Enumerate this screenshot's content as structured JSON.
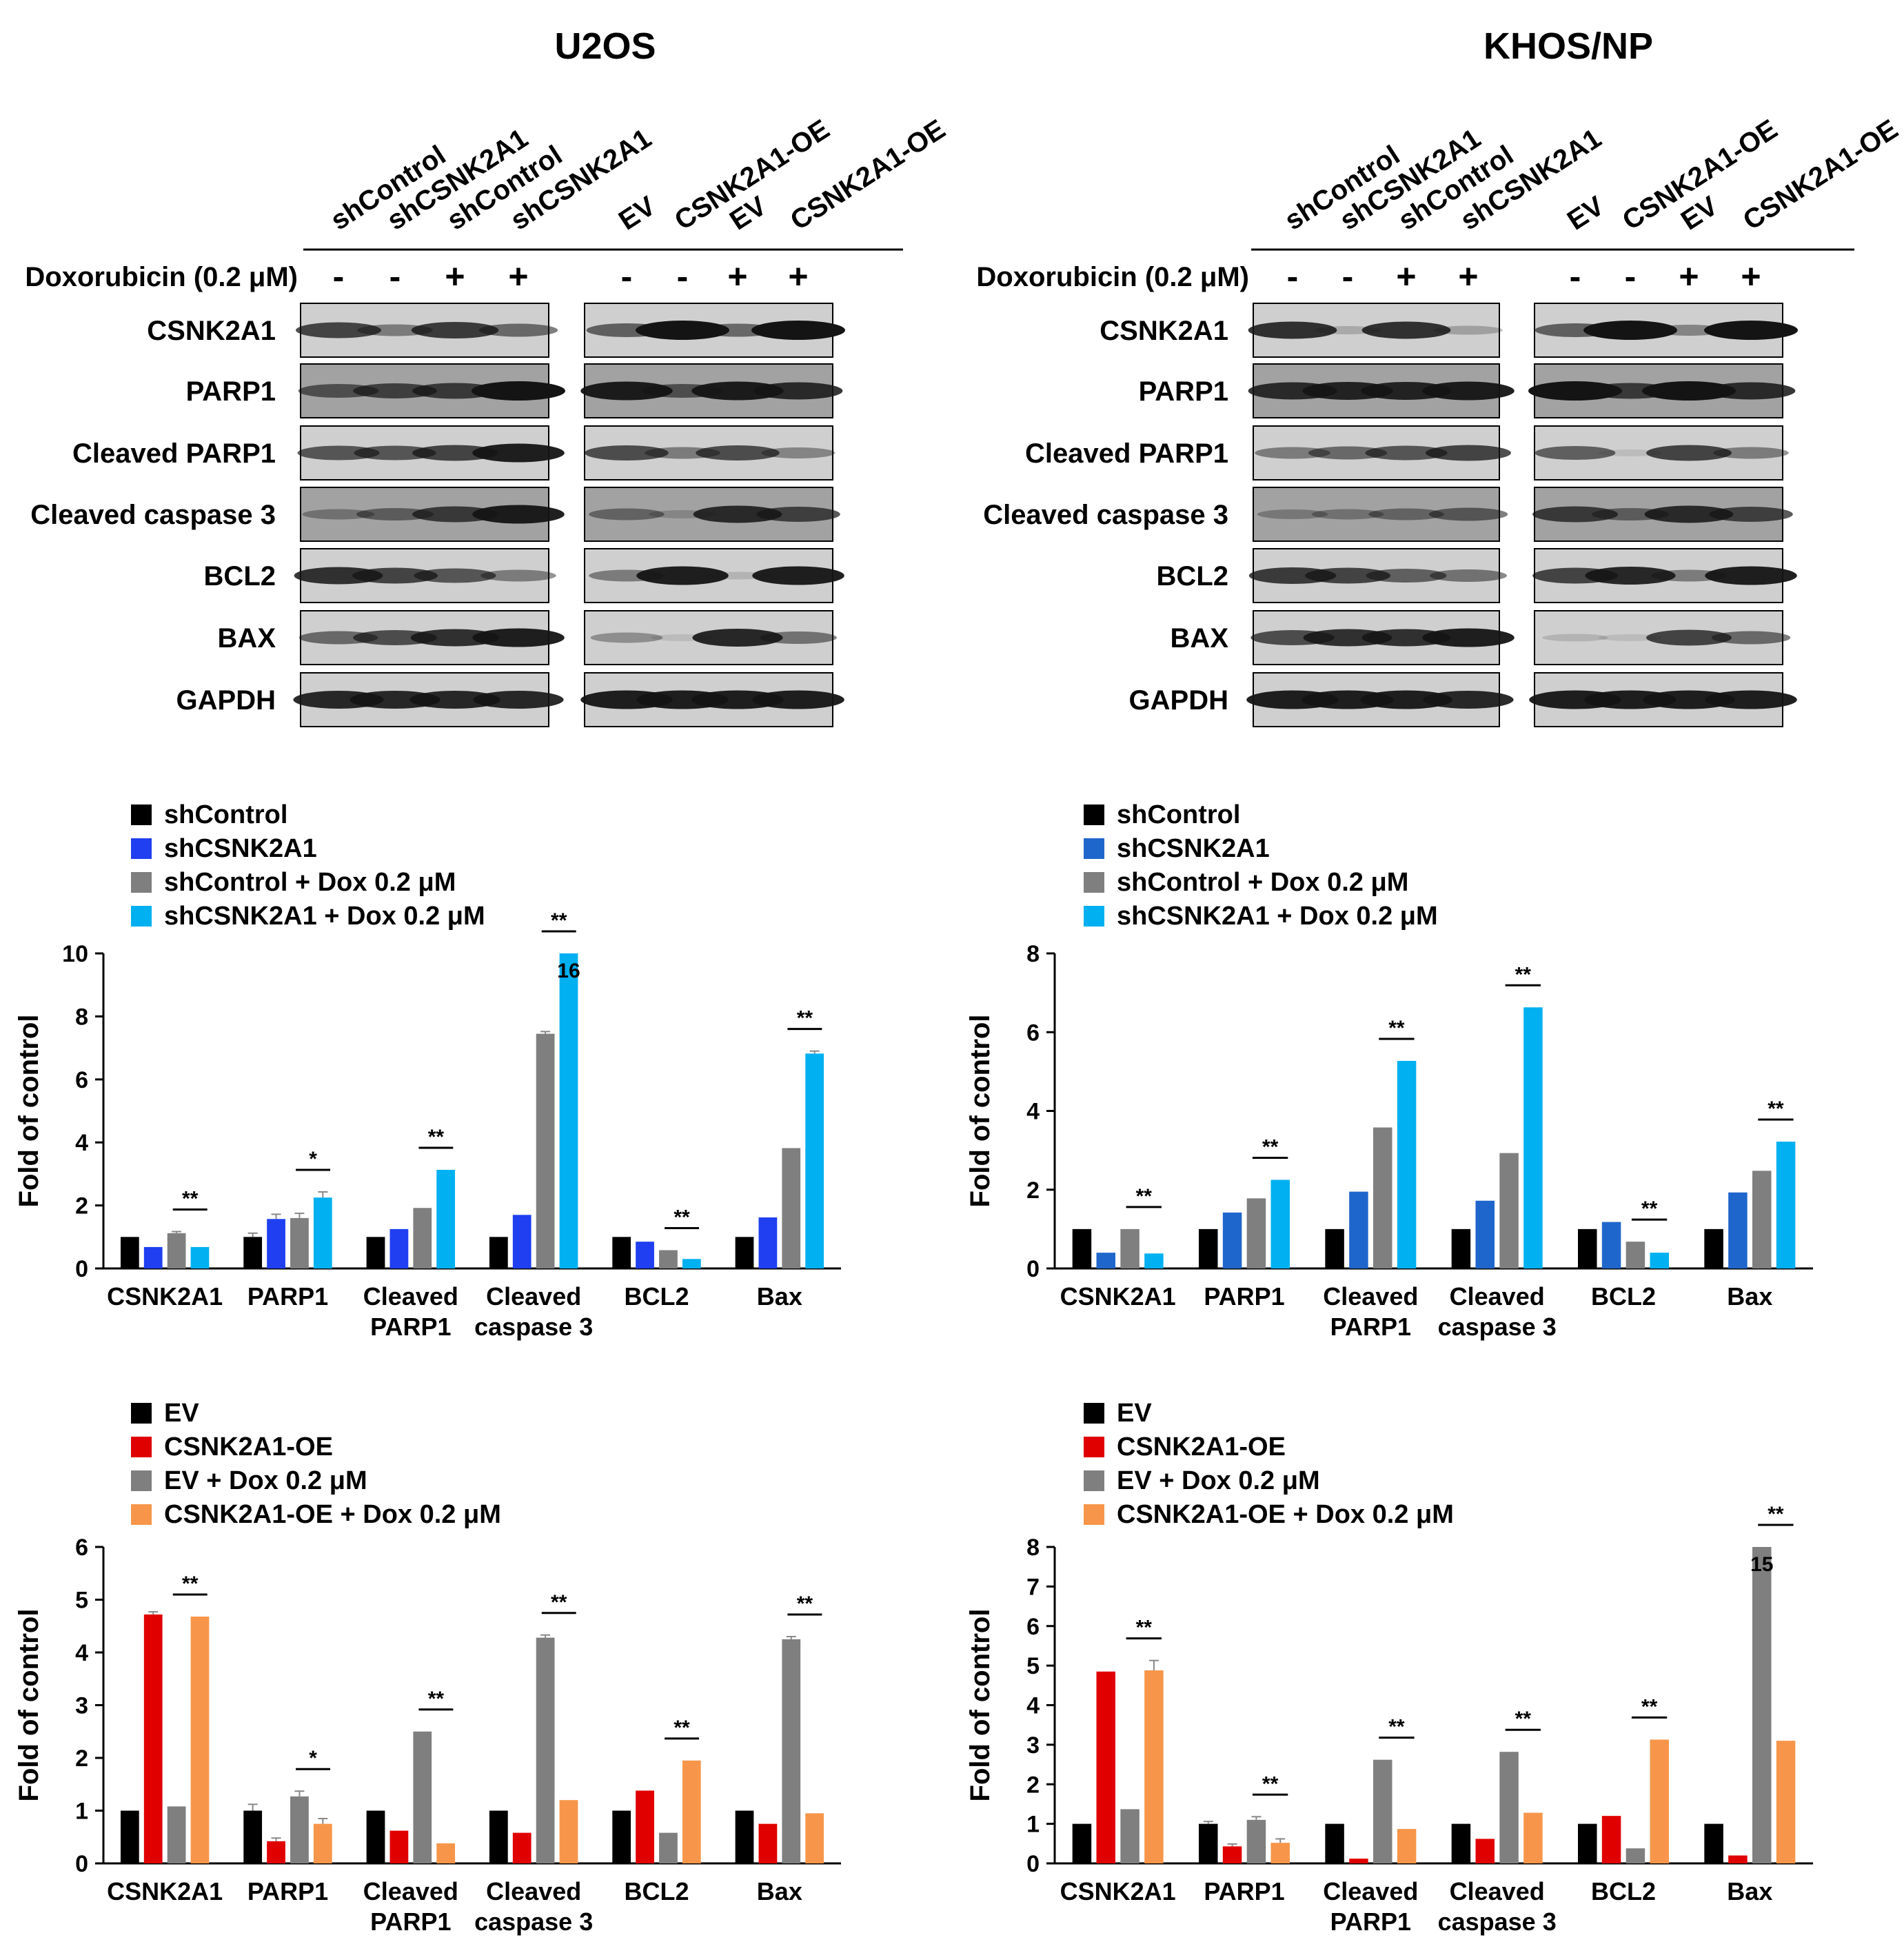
{
  "colors": {
    "axis": "#000000",
    "blot_background": "#e2e2e2",
    "band": "#141414",
    "sh_series": [
      "#000000",
      "#1f3ff0",
      "#7f7f7f",
      "#00b0f0"
    ],
    "sh_series_khos": [
      "#000000",
      "#1f66cc",
      "#7f7f7f",
      "#00b0f0"
    ],
    "oe_series": [
      "#000000",
      "#e00000",
      "#7f7f7f",
      "#f7964a"
    ]
  },
  "panels": [
    {
      "title": "U2OS",
      "lanes_left": [
        "shControl",
        "shCSNK2A1",
        "shControl",
        "shCSNK2A1"
      ],
      "lanes_right": [
        "EV",
        "CSNK2A1-OE",
        "EV",
        "CSNK2A1-OE"
      ],
      "treatment_label": "Doxorubicin (0.2 μM)",
      "treatment_marks": [
        "-",
        "-",
        "+",
        "+",
        "-",
        "-",
        "+",
        "+"
      ],
      "proteins": [
        "CSNK2A1",
        "PARP1",
        "Cleaved PARP1",
        "Cleaved caspase 3",
        "BCL2",
        "BAX",
        "GAPDH"
      ],
      "band_intensity_left": [
        [
          0.75,
          0.45,
          0.8,
          0.55
        ],
        [
          0.6,
          0.7,
          0.75,
          1.0
        ],
        [
          0.65,
          0.65,
          0.75,
          0.95
        ],
        [
          0.35,
          0.5,
          0.75,
          0.95
        ],
        [
          0.85,
          0.75,
          0.65,
          0.45
        ],
        [
          0.55,
          0.7,
          0.85,
          0.95
        ],
        [
          0.9,
          0.9,
          0.9,
          0.9
        ]
      ],
      "band_intensity_right": [
        [
          0.6,
          1.0,
          0.55,
          1.0
        ],
        [
          0.95,
          0.6,
          0.95,
          0.85
        ],
        [
          0.7,
          0.45,
          0.7,
          0.4
        ],
        [
          0.45,
          0.2,
          0.85,
          0.7
        ],
        [
          0.45,
          0.95,
          0.15,
          0.95
        ],
        [
          0.35,
          0.1,
          0.9,
          0.5
        ],
        [
          0.95,
          0.95,
          0.95,
          0.95
        ]
      ]
    },
    {
      "title": "KHOS/NP",
      "lanes_left": [
        "shControl",
        "shCSNK2A1",
        "shControl",
        "shCSNK2A1"
      ],
      "lanes_right": [
        "EV",
        "CSNK2A1-OE",
        "EV",
        "CSNK2A1-OE"
      ],
      "treatment_label": "Doxorubicin (0.2 μM)",
      "treatment_marks": [
        "-",
        "-",
        "+",
        "+",
        "-",
        "-",
        "+",
        "+"
      ],
      "proteins": [
        "CSNK2A1",
        "PARP1",
        "Cleaved PARP1",
        "Cleaved caspase 3",
        "BCL2",
        "BAX",
        "GAPDH"
      ],
      "band_intensity_left": [
        [
          0.85,
          0.2,
          0.85,
          0.25
        ],
        [
          0.85,
          0.9,
          0.9,
          0.95
        ],
        [
          0.45,
          0.55,
          0.65,
          0.75
        ],
        [
          0.3,
          0.35,
          0.45,
          0.55
        ],
        [
          0.8,
          0.75,
          0.6,
          0.5
        ],
        [
          0.7,
          0.85,
          0.85,
          0.95
        ],
        [
          0.95,
          0.95,
          0.95,
          0.9
        ]
      ],
      "band_intensity_right": [
        [
          0.6,
          1.0,
          0.4,
          1.0
        ],
        [
          1.0,
          0.75,
          1.0,
          0.85
        ],
        [
          0.6,
          0.1,
          0.75,
          0.45
        ],
        [
          0.75,
          0.5,
          0.85,
          0.7
        ],
        [
          0.75,
          0.9,
          0.45,
          0.95
        ],
        [
          0.15,
          0.1,
          0.75,
          0.55
        ],
        [
          0.95,
          0.95,
          0.95,
          0.95
        ]
      ]
    }
  ],
  "chart_data": [
    {
      "type": "bar",
      "ylabel": "Fold of control",
      "ylim": [
        0,
        10
      ],
      "yticks": [
        0,
        2,
        4,
        6,
        8,
        10
      ],
      "categories": [
        "CSNK2A1",
        "PARP1",
        "Cleaved PARP1",
        "Cleaved caspase 3",
        "BCL2",
        "Bax"
      ],
      "category_labels": [
        [
          "CSNK2A1"
        ],
        [
          "PARP1"
        ],
        [
          "Cleaved",
          "PARP1"
        ],
        [
          "Cleaved",
          "caspase 3"
        ],
        [
          "BCL2"
        ],
        [
          "Bax"
        ]
      ],
      "legend": "top-left",
      "series": [
        {
          "name": "shControl",
          "values": [
            1.0,
            1.0,
            1.0,
            1.0,
            1.0,
            1.0
          ],
          "errors": [
            0,
            0.12,
            0,
            0,
            0,
            0
          ]
        },
        {
          "name": "shCSNK2A1",
          "values": [
            0.68,
            1.57,
            1.25,
            1.7,
            0.85,
            1.62
          ],
          "errors": [
            0,
            0.15,
            0,
            0,
            0,
            0
          ]
        },
        {
          "name": "shControl + Dox 0.2 μM",
          "values": [
            1.12,
            1.6,
            1.92,
            7.45,
            0.58,
            3.82
          ],
          "errors": [
            0.05,
            0.15,
            0,
            0.07,
            0,
            0
          ]
        },
        {
          "name": "shCSNK2A1 + Dox 0.2 μM",
          "values": [
            0.68,
            2.25,
            3.13,
            10.0,
            0.3,
            6.82
          ],
          "errors": [
            0,
            0.18,
            0,
            0,
            0,
            0.08
          ]
        }
      ],
      "significance": [
        "**",
        "*",
        "**",
        "**",
        "**",
        "**"
      ],
      "bar_annotations": [
        {
          "category": 3,
          "series": 3,
          "text": "16"
        }
      ]
    },
    {
      "type": "bar",
      "ylabel": "Fold of control",
      "ylim": [
        0,
        8
      ],
      "yticks": [
        0,
        2,
        4,
        6,
        8
      ],
      "categories": [
        "CSNK2A1",
        "PARP1",
        "Cleaved PARP1",
        "Cleaved caspase 3",
        "BCL2",
        "Bax"
      ],
      "category_labels": [
        [
          "CSNK2A1"
        ],
        [
          "PARP1"
        ],
        [
          "Cleaved",
          "PARP1"
        ],
        [
          "Cleaved",
          "caspase 3"
        ],
        [
          "BCL2"
        ],
        [
          "Bax"
        ]
      ],
      "legend": "top-left",
      "series": [
        {
          "name": "shControl",
          "values": [
            1.0,
            1.0,
            1.0,
            1.0,
            1.0,
            1.0
          ],
          "errors": [
            0,
            0,
            0,
            0,
            0,
            0
          ]
        },
        {
          "name": "shCSNK2A1",
          "values": [
            0.4,
            1.42,
            1.95,
            1.72,
            1.18,
            1.93
          ],
          "errors": [
            0,
            0,
            0,
            0,
            0,
            0
          ]
        },
        {
          "name": "shControl + Dox 0.2 μM",
          "values": [
            1.0,
            1.78,
            3.58,
            2.93,
            0.68,
            2.48
          ],
          "errors": [
            0,
            0,
            0,
            0,
            0,
            0
          ]
        },
        {
          "name": "shCSNK2A1 + Dox 0.2 μM",
          "values": [
            0.38,
            2.25,
            5.27,
            6.63,
            0.4,
            3.22
          ],
          "errors": [
            0,
            0,
            0,
            0,
            0,
            0
          ]
        }
      ],
      "significance": [
        "**",
        "**",
        "**",
        "**",
        "**",
        "**"
      ],
      "bar_annotations": []
    },
    {
      "type": "bar",
      "ylabel": "Fold of control",
      "ylim": [
        0,
        6
      ],
      "yticks": [
        0,
        1,
        2,
        3,
        4,
        5,
        6
      ],
      "categories": [
        "CSNK2A1",
        "PARP1",
        "Cleaved PARP1",
        "Cleaved caspase 3",
        "BCL2",
        "Bax"
      ],
      "category_labels": [
        [
          "CSNK2A1"
        ],
        [
          "PARP1"
        ],
        [
          "Cleaved",
          "PARP1"
        ],
        [
          "Cleaved",
          "caspase 3"
        ],
        [
          "BCL2"
        ],
        [
          "Bax"
        ]
      ],
      "legend": "top-left",
      "series": [
        {
          "name": "EV",
          "values": [
            1.0,
            1.0,
            1.0,
            1.0,
            1.0,
            1.0
          ],
          "errors": [
            0,
            0.12,
            0,
            0,
            0,
            0
          ]
        },
        {
          "name": "CSNK2A1-OE",
          "values": [
            4.72,
            0.42,
            0.62,
            0.58,
            1.38,
            0.75
          ],
          "errors": [
            0.05,
            0.06,
            0,
            0,
            0,
            0
          ]
        },
        {
          "name": "EV + Dox 0.2 μM",
          "values": [
            1.08,
            1.27,
            2.5,
            4.28,
            0.58,
            4.25
          ],
          "errors": [
            0,
            0.1,
            0,
            0.05,
            0,
            0.05
          ]
        },
        {
          "name": "CSNK2A1-OE + Dox 0.2 μM",
          "values": [
            4.68,
            0.75,
            0.38,
            1.2,
            1.95,
            0.95
          ],
          "errors": [
            0,
            0.1,
            0,
            0,
            0,
            0
          ]
        }
      ],
      "significance": [
        "**",
        "*",
        "**",
        "**",
        "**",
        "**"
      ],
      "bar_annotations": []
    },
    {
      "type": "bar",
      "ylabel": "Fold of control",
      "ylim": [
        0,
        8
      ],
      "yticks": [
        0,
        1,
        2,
        3,
        4,
        5,
        6,
        7,
        8
      ],
      "categories": [
        "CSNK2A1",
        "PARP1",
        "Cleaved PARP1",
        "Cleaved caspase 3",
        "BCL2",
        "Bax"
      ],
      "category_labels": [
        [
          "CSNK2A1"
        ],
        [
          "PARP1"
        ],
        [
          "Cleaved",
          "PARP1"
        ],
        [
          "Cleaved",
          "caspase 3"
        ],
        [
          "BCL2"
        ],
        [
          "Bax"
        ]
      ],
      "legend": "top-left",
      "series": [
        {
          "name": "EV",
          "values": [
            1.0,
            1.0,
            1.0,
            1.0,
            1.0,
            1.0
          ],
          "errors": [
            0,
            0.06,
            0,
            0,
            0,
            0
          ]
        },
        {
          "name": "CSNK2A1-OE",
          "values": [
            4.85,
            0.43,
            0.12,
            0.62,
            1.2,
            0.2
          ],
          "errors": [
            0,
            0.06,
            0,
            0,
            0,
            0
          ]
        },
        {
          "name": "EV + Dox 0.2 μM",
          "values": [
            1.37,
            1.1,
            2.62,
            2.82,
            0.38,
            8.0
          ],
          "errors": [
            0,
            0.08,
            0,
            0,
            0,
            0
          ]
        },
        {
          "name": "CSNK2A1-OE + Dox 0.2 μM",
          "values": [
            4.88,
            0.52,
            0.87,
            1.28,
            3.13,
            3.1
          ],
          "errors": [
            0.25,
            0.1,
            0,
            0,
            0,
            0
          ]
        }
      ],
      "significance": [
        "**",
        "**",
        "**",
        "**",
        "**",
        "**"
      ],
      "bar_annotations": [
        {
          "category": 5,
          "series": 2,
          "text": "15"
        }
      ]
    }
  ]
}
